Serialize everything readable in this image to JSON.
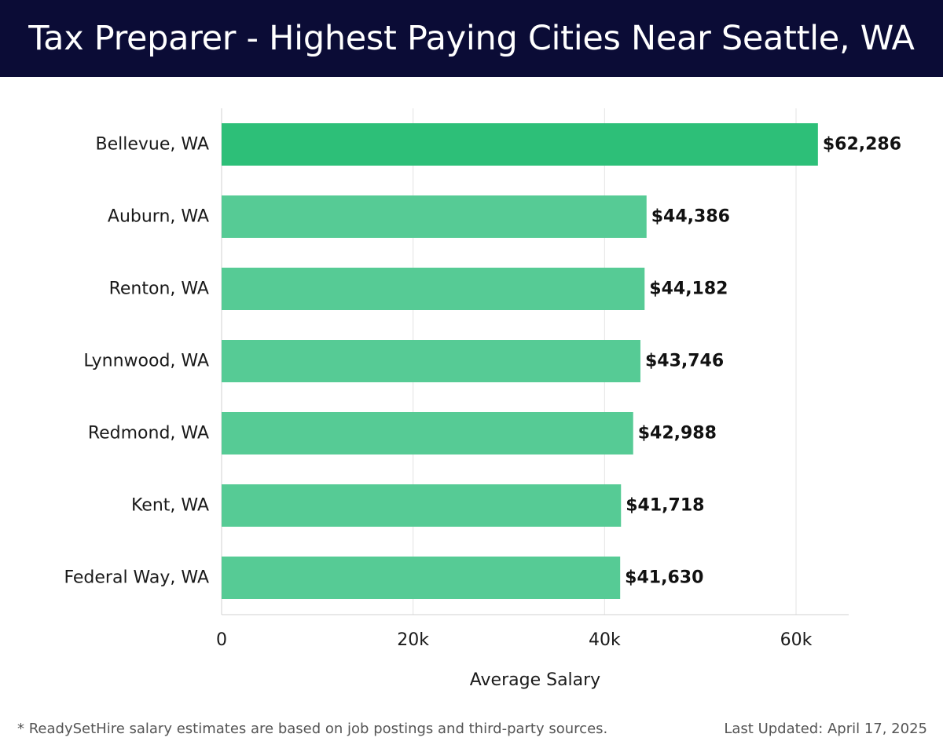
{
  "header": {
    "title": "Tax Preparer - Highest Paying Cities Near Seattle, WA"
  },
  "footer": {
    "note": "* ReadySetHire salary estimates are based on job postings and third-party sources.",
    "updated": "Last Updated: April 17, 2025"
  },
  "colors": {
    "header_bg": "#0b0c36",
    "top_bar": "#2dbf78",
    "bar": "#56cb95"
  },
  "chart_data": {
    "type": "bar",
    "orientation": "horizontal",
    "categories": [
      "Bellevue, WA",
      "Auburn, WA",
      "Renton, WA",
      "Lynnwood, WA",
      "Redmond, WA",
      "Kent, WA",
      "Federal Way, WA"
    ],
    "values": [
      62286,
      44386,
      44182,
      43746,
      42988,
      41718,
      41630
    ],
    "value_labels": [
      "$62,286",
      "$44,386",
      "$44,182",
      "$43,746",
      "$42,988",
      "$41,718",
      "$41,630"
    ],
    "xlabel": "Average Salary",
    "ylabel": "",
    "xlim": [
      0,
      65500
    ],
    "xticks": [
      0,
      20000,
      40000,
      60000
    ],
    "xtick_labels": [
      "0",
      "20k",
      "40k",
      "60k"
    ],
    "grid": "vertical"
  }
}
